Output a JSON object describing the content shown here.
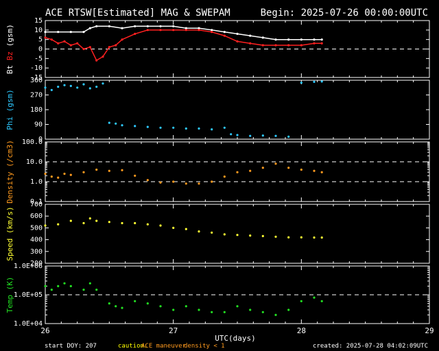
{
  "header": {
    "title": "ACE RTSW[Estimated] MAG & SWEPAM",
    "begin": "Begin: 2025-07-26 00:00:00UTC"
  },
  "footer": {
    "start_doy": "start DOY: 207",
    "caution": "caution:",
    "maneuver": "ACE maneuver",
    "density_note": "density < 1",
    "created": "created: 2025-07-28 04:02:09UTC"
  },
  "colors": {
    "bt": "#ffffff",
    "bz": "#ff2020",
    "phi": "#2ec8ff",
    "density": "#ff9a1e",
    "speed": "#ffff33",
    "temp": "#22e022",
    "axes": "#ffffff",
    "caution": "#ffff00",
    "maneuver": "#ff9a1e",
    "density_note": "#ff9a1e"
  },
  "chart_data": [
    {
      "type": "line",
      "panel": "mag",
      "ylabel_parts": [
        "Bt",
        "Bz",
        "(gsm)"
      ],
      "ylim": [
        -15,
        15
      ],
      "yticks": [
        -15,
        -10,
        -5,
        0,
        5,
        10,
        15
      ],
      "dashed_lines": [
        0
      ],
      "series": [
        {
          "name": "Bt",
          "color_key": "bt",
          "x": [
            26.0,
            26.1,
            26.2,
            26.3,
            26.35,
            26.4,
            26.5,
            26.6,
            26.7,
            26.8,
            26.9,
            27.0,
            27.1,
            27.2,
            27.3,
            27.4,
            27.5,
            27.6,
            27.7,
            27.8,
            27.9,
            28.0,
            28.1,
            28.16
          ],
          "y": [
            9,
            9,
            9,
            9,
            11,
            12,
            12,
            11,
            12,
            12,
            12,
            12,
            11,
            11,
            10,
            9,
            8,
            7,
            6,
            5,
            5,
            5,
            5,
            5
          ]
        },
        {
          "name": "Bz",
          "color_key": "bz",
          "x": [
            26.0,
            26.05,
            26.1,
            26.15,
            26.2,
            26.25,
            26.3,
            26.35,
            26.4,
            26.45,
            26.5,
            26.55,
            26.6,
            26.7,
            26.8,
            26.9,
            27.0,
            27.1,
            27.2,
            27.3,
            27.4,
            27.5,
            27.6,
            27.7,
            27.8,
            27.9,
            28.0,
            28.1,
            28.16
          ],
          "y": [
            6,
            5,
            3,
            4,
            2,
            3,
            0,
            1,
            -6,
            -4,
            1,
            2,
            5,
            8,
            10,
            10,
            10,
            10,
            10,
            9,
            7,
            4,
            3,
            2,
            2,
            2,
            2,
            3,
            3
          ]
        }
      ]
    },
    {
      "type": "scatter",
      "panel": "phi",
      "ylabel": "Phi (gsm)",
      "ylim": [
        0,
        360
      ],
      "yticks": [
        0,
        90,
        180,
        270,
        360
      ],
      "series": [
        {
          "name": "Phi",
          "color_key": "phi",
          "x": [
            26.0,
            26.05,
            26.1,
            26.15,
            26.2,
            26.25,
            26.3,
            26.35,
            26.4,
            26.45,
            26.5,
            26.55,
            26.6,
            26.7,
            26.8,
            26.9,
            27.0,
            27.1,
            27.2,
            27.3,
            27.4,
            27.45,
            27.5,
            27.6,
            27.7,
            27.8,
            27.9,
            28.0,
            28.1,
            28.16
          ],
          "y": [
            315,
            300,
            320,
            330,
            325,
            315,
            335,
            310,
            320,
            340,
            100,
            95,
            85,
            80,
            75,
            70,
            70,
            65,
            65,
            60,
            70,
            30,
            25,
            20,
            22,
            20,
            15,
            345,
            350,
            352
          ]
        }
      ]
    },
    {
      "type": "scatter",
      "panel": "density",
      "ylabel": "Density (/cm3)",
      "scale": "log",
      "ylim": [
        0.1,
        100
      ],
      "ytick_labels": [
        "0.1",
        "1.0",
        "10.0",
        "100.0"
      ],
      "yticks": [
        0.1,
        1,
        10,
        100
      ],
      "dashed_lines": [
        1,
        10
      ],
      "series": [
        {
          "name": "Density",
          "color_key": "density",
          "x": [
            26.0,
            26.05,
            26.1,
            26.15,
            26.2,
            26.3,
            26.4,
            26.5,
            26.6,
            26.7,
            26.8,
            26.9,
            27.0,
            27.1,
            27.2,
            27.3,
            27.4,
            27.5,
            27.6,
            27.7,
            27.8,
            27.9,
            28.0,
            28.1,
            28.16
          ],
          "y": [
            2.5,
            1.8,
            1.6,
            2.5,
            2.2,
            3.0,
            4.0,
            3.5,
            3.8,
            2.0,
            1.2,
            0.9,
            1.0,
            0.8,
            0.8,
            1.0,
            1.8,
            3.0,
            3.5,
            5.0,
            8.0,
            5.0,
            4.0,
            3.5,
            3.0
          ]
        }
      ]
    },
    {
      "type": "scatter",
      "panel": "speed",
      "ylabel": "Speed (km/s)",
      "ylim": [
        200,
        700
      ],
      "yticks": [
        200,
        300,
        400,
        500,
        600,
        700
      ],
      "series": [
        {
          "name": "Speed",
          "color_key": "speed",
          "x": [
            26.0,
            26.1,
            26.2,
            26.3,
            26.35,
            26.4,
            26.5,
            26.6,
            26.7,
            26.8,
            26.9,
            27.0,
            27.1,
            27.2,
            27.3,
            27.4,
            27.5,
            27.6,
            27.7,
            27.8,
            27.9,
            28.0,
            28.1,
            28.16
          ],
          "y": [
            520,
            530,
            560,
            540,
            580,
            560,
            550,
            540,
            540,
            530,
            520,
            500,
            490,
            470,
            460,
            445,
            440,
            435,
            430,
            425,
            420,
            420,
            418,
            418
          ]
        }
      ]
    },
    {
      "type": "scatter",
      "panel": "temp",
      "ylabel": "Temp (K)",
      "scale": "log",
      "ylim": [
        10000,
        1000000
      ],
      "ytick_labels": [
        "1.0E+04",
        "1.0E+05",
        "1.0E+06"
      ],
      "yticks": [
        10000,
        100000,
        1000000
      ],
      "dashed_lines": [
        100000
      ],
      "series": [
        {
          "name": "Temp",
          "color_key": "temp",
          "x": [
            26.0,
            26.05,
            26.1,
            26.15,
            26.2,
            26.3,
            26.35,
            26.4,
            26.5,
            26.55,
            26.6,
            26.7,
            26.8,
            26.9,
            27.0,
            27.1,
            27.2,
            27.3,
            27.4,
            27.5,
            27.6,
            27.7,
            27.8,
            27.9,
            28.0,
            28.1,
            28.16
          ],
          "y": [
            200000,
            150000,
            200000,
            250000,
            200000,
            150000,
            250000,
            150000,
            50000,
            40000,
            35000,
            60000,
            50000,
            40000,
            30000,
            40000,
            30000,
            25000,
            25000,
            40000,
            30000,
            25000,
            20000,
            30000,
            60000,
            80000,
            60000
          ]
        }
      ]
    }
  ],
  "x_axis": {
    "label": "UTC(days)",
    "ticks": [
      26,
      27,
      28,
      29
    ],
    "tick_labels": [
      "26",
      "27",
      "28",
      "29"
    ],
    "xlim": [
      26,
      29
    ]
  }
}
